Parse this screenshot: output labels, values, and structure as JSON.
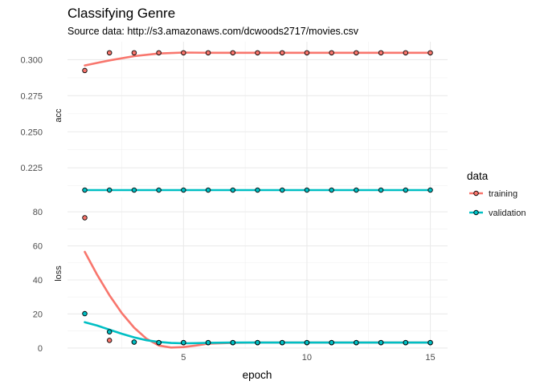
{
  "chart_data": {
    "type": "line",
    "title": "Classifying Genre",
    "subtitle": "Source data: http://s3.amazonaws.com/dcwoods2717/movies.csv",
    "xlabel": "epoch",
    "facets": [
      "acc",
      "loss"
    ],
    "x_ticks": [
      "5",
      "10",
      "15"
    ],
    "xlim": [
      0.3,
      15.7
    ],
    "legend": {
      "title": "data",
      "placement": "right"
    },
    "series": [
      {
        "name": "training",
        "color": "#F8766D"
      },
      {
        "name": "validation",
        "color": "#00BFC4"
      }
    ],
    "panels": [
      {
        "facet": "acc",
        "ylim": [
          0.2095,
          0.3125
        ],
        "y_ticks": [
          "0.225",
          "0.250",
          "0.275",
          "0.300"
        ],
        "y_tick_values": [
          0.225,
          0.25,
          0.275,
          0.3
        ],
        "points": {
          "training": [
            [
              1,
              0.2925
            ],
            [
              2,
              0.3048
            ],
            [
              3,
              0.3048
            ],
            [
              4,
              0.3048
            ],
            [
              5,
              0.3048
            ],
            [
              6,
              0.3048
            ],
            [
              7,
              0.3048
            ],
            [
              8,
              0.3048
            ],
            [
              9,
              0.3048
            ],
            [
              10,
              0.3048
            ],
            [
              11,
              0.3048
            ],
            [
              12,
              0.3048
            ],
            [
              13,
              0.3048
            ],
            [
              14,
              0.3048
            ],
            [
              15,
              0.3048
            ]
          ],
          "validation": [
            [
              1,
              0.2095
            ],
            [
              2,
              0.2095
            ],
            [
              3,
              0.2095
            ],
            [
              4,
              0.2095
            ],
            [
              5,
              0.2095
            ],
            [
              6,
              0.2095
            ],
            [
              7,
              0.2095
            ],
            [
              8,
              0.2095
            ],
            [
              9,
              0.2095
            ],
            [
              10,
              0.2095
            ],
            [
              11,
              0.2095
            ],
            [
              12,
              0.2095
            ],
            [
              13,
              0.2095
            ],
            [
              14,
              0.2095
            ],
            [
              15,
              0.2095
            ]
          ]
        },
        "smooth": {
          "training": [
            [
              1,
              0.296
            ],
            [
              2,
              0.2995
            ],
            [
              3,
              0.3025
            ],
            [
              4,
              0.3043
            ],
            [
              5,
              0.305
            ],
            [
              6,
              0.3048
            ],
            [
              8,
              0.3048
            ],
            [
              10,
              0.3048
            ],
            [
              12,
              0.3048
            ],
            [
              15,
              0.3048
            ]
          ],
          "validation": [
            [
              1,
              0.2095
            ],
            [
              15,
              0.2095
            ]
          ]
        }
      },
      {
        "facet": "loss",
        "ylim": [
          -0.5,
          88.5
        ],
        "y_ticks": [
          "0",
          "20",
          "40",
          "60",
          "80"
        ],
        "y_tick_values": [
          0,
          20,
          40,
          60,
          80
        ],
        "points": {
          "training": [
            [
              1,
              76.5
            ],
            [
              2,
              4.5
            ],
            [
              3,
              3.5
            ],
            [
              4,
              3.2
            ],
            [
              5,
              3.2
            ],
            [
              6,
              3.2
            ],
            [
              7,
              3.2
            ],
            [
              8,
              3.2
            ],
            [
              9,
              3.2
            ],
            [
              10,
              3.2
            ],
            [
              11,
              3.2
            ],
            [
              12,
              3.2
            ],
            [
              13,
              3.2
            ],
            [
              14,
              3.2
            ],
            [
              15,
              3.2
            ]
          ],
          "validation": [
            [
              1,
              20.2
            ],
            [
              2,
              9.5
            ],
            [
              3,
              3.5
            ],
            [
              4,
              3.2
            ],
            [
              5,
              3.2
            ],
            [
              6,
              3.2
            ],
            [
              7,
              3.2
            ],
            [
              8,
              3.2
            ],
            [
              9,
              3.2
            ],
            [
              10,
              3.2
            ],
            [
              11,
              3.2
            ],
            [
              12,
              3.2
            ],
            [
              13,
              3.2
            ],
            [
              14,
              3.2
            ],
            [
              15,
              3.2
            ]
          ]
        },
        "smooth": {
          "training": [
            [
              1,
              56.5
            ],
            [
              1.5,
              43
            ],
            [
              2,
              31
            ],
            [
              2.5,
              20.5
            ],
            [
              3,
              12
            ],
            [
              3.5,
              5.5
            ],
            [
              4,
              1.5
            ],
            [
              4.5,
              0.3
            ],
            [
              5,
              0.6
            ],
            [
              5.5,
              1.5
            ],
            [
              6,
              2.6
            ],
            [
              7,
              3.1
            ],
            [
              8,
              3.2
            ],
            [
              10,
              3.2
            ],
            [
              12,
              3.2
            ],
            [
              15,
              3.2
            ]
          ],
          "validation": [
            [
              1,
              15.2
            ],
            [
              1.5,
              13.2
            ],
            [
              2,
              10.8
            ],
            [
              2.5,
              8.4
            ],
            [
              3,
              6.3
            ],
            [
              3.5,
              4.6
            ],
            [
              4,
              3.6
            ],
            [
              4.5,
              3.0
            ],
            [
              5,
              2.8
            ],
            [
              5.5,
              2.9
            ],
            [
              6,
              3.1
            ],
            [
              7,
              3.2
            ],
            [
              10,
              3.2
            ],
            [
              15,
              3.2
            ]
          ]
        }
      }
    ]
  }
}
